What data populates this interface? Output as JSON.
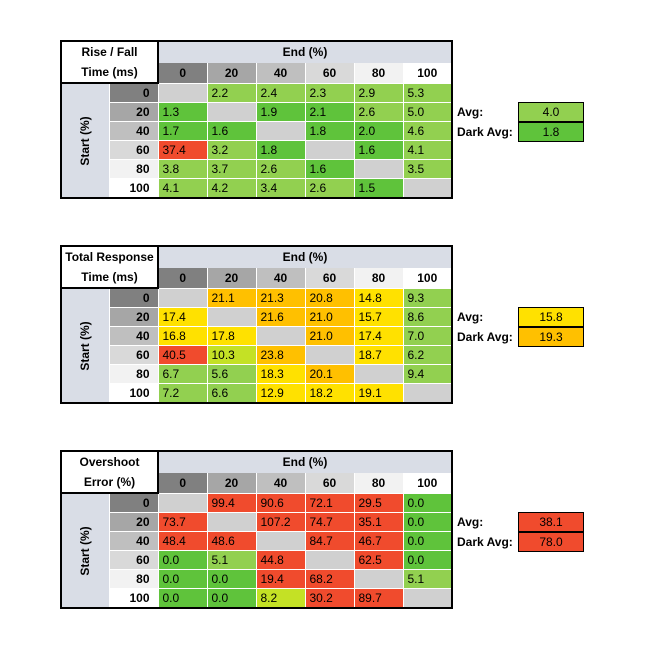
{
  "colors": {
    "green": "#5fc33b",
    "lightgreen": "#92d050",
    "yellowgreen": "#c4e125",
    "yellow": "#ffe100",
    "orange": "#ffc000",
    "darkorange": "#f5a623",
    "red": "#f04b2d",
    "empty": "#d0d0d0"
  },
  "chart_data": [
    {
      "type": "table",
      "title_lines": [
        "Rise / Fall",
        "Time (ms)"
      ],
      "column_header": "End (%)",
      "row_header": "Start (%)",
      "columns": [
        "0",
        "20",
        "40",
        "60",
        "80",
        "100"
      ],
      "rows": [
        "0",
        "20",
        "40",
        "60",
        "80",
        "100"
      ],
      "values": [
        [
          "",
          "2.2",
          "2.4",
          "2.3",
          "2.9",
          "5.3"
        ],
        [
          "1.3",
          "",
          "1.9",
          "2.1",
          "2.6",
          "5.0"
        ],
        [
          "1.7",
          "1.6",
          "",
          "1.8",
          "2.0",
          "4.6"
        ],
        [
          "37.4",
          "3.2",
          "1.8",
          "",
          "1.6",
          "4.1"
        ],
        [
          "3.8",
          "3.7",
          "2.6",
          "1.6",
          "",
          "3.5"
        ],
        [
          "4.1",
          "4.2",
          "3.4",
          "2.6",
          "1.5",
          ""
        ]
      ],
      "cell_colors": [
        [
          "empty",
          "lightgreen",
          "lightgreen",
          "lightgreen",
          "lightgreen",
          "lightgreen"
        ],
        [
          "green",
          "empty",
          "green",
          "green",
          "lightgreen",
          "lightgreen"
        ],
        [
          "green",
          "green",
          "empty",
          "green",
          "green",
          "lightgreen"
        ],
        [
          "red",
          "lightgreen",
          "green",
          "empty",
          "green",
          "lightgreen"
        ],
        [
          "lightgreen",
          "lightgreen",
          "lightgreen",
          "green",
          "empty",
          "lightgreen"
        ],
        [
          "lightgreen",
          "lightgreen",
          "lightgreen",
          "lightgreen",
          "green",
          "empty"
        ]
      ],
      "avg_label": "Avg:",
      "avg": "4.0",
      "avg_color": "lightgreen",
      "dark_avg_label": "Dark Avg:",
      "dark_avg": "1.8",
      "dark_avg_color": "green"
    },
    {
      "type": "table",
      "title_lines": [
        "Total Response",
        "Time (ms)"
      ],
      "column_header": "End (%)",
      "row_header": "Start (%)",
      "columns": [
        "0",
        "20",
        "40",
        "60",
        "80",
        "100"
      ],
      "rows": [
        "0",
        "20",
        "40",
        "60",
        "80",
        "100"
      ],
      "values": [
        [
          "",
          "21.1",
          "21.3",
          "20.8",
          "14.8",
          "9.3"
        ],
        [
          "17.4",
          "",
          "21.6",
          "21.0",
          "15.7",
          "8.6"
        ],
        [
          "16.8",
          "17.8",
          "",
          "21.0",
          "17.4",
          "7.0"
        ],
        [
          "40.5",
          "10.3",
          "23.8",
          "",
          "18.7",
          "6.2"
        ],
        [
          "6.7",
          "5.6",
          "18.3",
          "20.1",
          "",
          "9.4"
        ],
        [
          "7.2",
          "6.6",
          "12.9",
          "18.2",
          "19.1",
          ""
        ]
      ],
      "cell_colors": [
        [
          "empty",
          "orange",
          "orange",
          "orange",
          "yellow",
          "lightgreen"
        ],
        [
          "yellow",
          "empty",
          "orange",
          "orange",
          "yellow",
          "lightgreen"
        ],
        [
          "yellow",
          "yellow",
          "empty",
          "orange",
          "yellow",
          "lightgreen"
        ],
        [
          "red",
          "yellowgreen",
          "orange",
          "empty",
          "yellow",
          "lightgreen"
        ],
        [
          "lightgreen",
          "lightgreen",
          "yellow",
          "orange",
          "empty",
          "lightgreen"
        ],
        [
          "lightgreen",
          "lightgreen",
          "yellow",
          "yellow",
          "yellow",
          "empty"
        ]
      ],
      "avg_label": "Avg:",
      "avg": "15.8",
      "avg_color": "yellow",
      "dark_avg_label": "Dark Avg:",
      "dark_avg": "19.3",
      "dark_avg_color": "orange"
    },
    {
      "type": "table",
      "title_lines": [
        "Overshoot",
        "Error (%)"
      ],
      "column_header": "End (%)",
      "row_header": "Start (%)",
      "columns": [
        "0",
        "20",
        "40",
        "60",
        "80",
        "100"
      ],
      "rows": [
        "0",
        "20",
        "40",
        "60",
        "80",
        "100"
      ],
      "values": [
        [
          "",
          "99.4",
          "90.6",
          "72.1",
          "29.5",
          "0.0"
        ],
        [
          "73.7",
          "",
          "107.2",
          "74.7",
          "35.1",
          "0.0"
        ],
        [
          "48.4",
          "48.6",
          "",
          "84.7",
          "46.7",
          "0.0"
        ],
        [
          "0.0",
          "5.1",
          "44.8",
          "",
          "62.5",
          "0.0"
        ],
        [
          "0.0",
          "0.0",
          "19.4",
          "68.2",
          "",
          "5.1"
        ],
        [
          "0.0",
          "0.0",
          "8.2",
          "30.2",
          "89.7",
          ""
        ]
      ],
      "cell_colors": [
        [
          "empty",
          "red",
          "red",
          "red",
          "red",
          "green"
        ],
        [
          "red",
          "empty",
          "red",
          "red",
          "red",
          "green"
        ],
        [
          "red",
          "red",
          "empty",
          "red",
          "red",
          "green"
        ],
        [
          "green",
          "lightgreen",
          "red",
          "empty",
          "red",
          "green"
        ],
        [
          "green",
          "green",
          "red",
          "red",
          "empty",
          "lightgreen"
        ],
        [
          "green",
          "green",
          "yellowgreen",
          "red",
          "red",
          "empty"
        ]
      ],
      "avg_label": "Avg:",
      "avg": "38.1",
      "avg_color": "red",
      "dark_avg_label": "Dark Avg:",
      "dark_avg": "78.0",
      "dark_avg_color": "red"
    }
  ]
}
